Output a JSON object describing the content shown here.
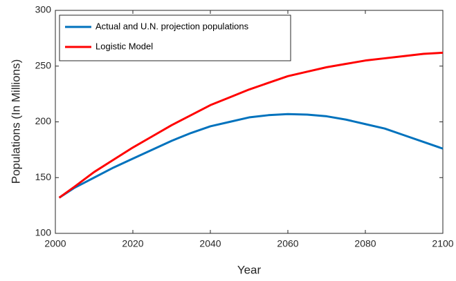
{
  "chart_data": {
    "type": "line",
    "x_label": "Year",
    "y_label": "Populations (In Millions)",
    "x": [
      2001,
      2005,
      2010,
      2015,
      2020,
      2025,
      2030,
      2035,
      2040,
      2045,
      2050,
      2055,
      2060,
      2065,
      2070,
      2075,
      2080,
      2085,
      2090,
      2095,
      2100
    ],
    "series": [
      {
        "name": "Actual and U.N. projection populations",
        "color": "#0072bd",
        "values": [
          132,
          141,
          150,
          159,
          167,
          175,
          183,
          190,
          196,
          200,
          204,
          206,
          207,
          206.5,
          205,
          202,
          198,
          194,
          188,
          182,
          176
        ]
      },
      {
        "name": "Logistic Model",
        "color": "#ff0000",
        "values": [
          132,
          142,
          155,
          166,
          177,
          187,
          197,
          206,
          215,
          222,
          229,
          235,
          241,
          245,
          249,
          252,
          255,
          257,
          259,
          261,
          262
        ]
      }
    ],
    "xlim": [
      2000,
      2100
    ],
    "xticks": [
      2000,
      2020,
      2040,
      2060,
      2080,
      2100
    ],
    "ylim": [
      100,
      300
    ],
    "yticks": [
      100,
      150,
      200,
      250,
      300
    ],
    "grid": false,
    "legend": "upper-left"
  }
}
